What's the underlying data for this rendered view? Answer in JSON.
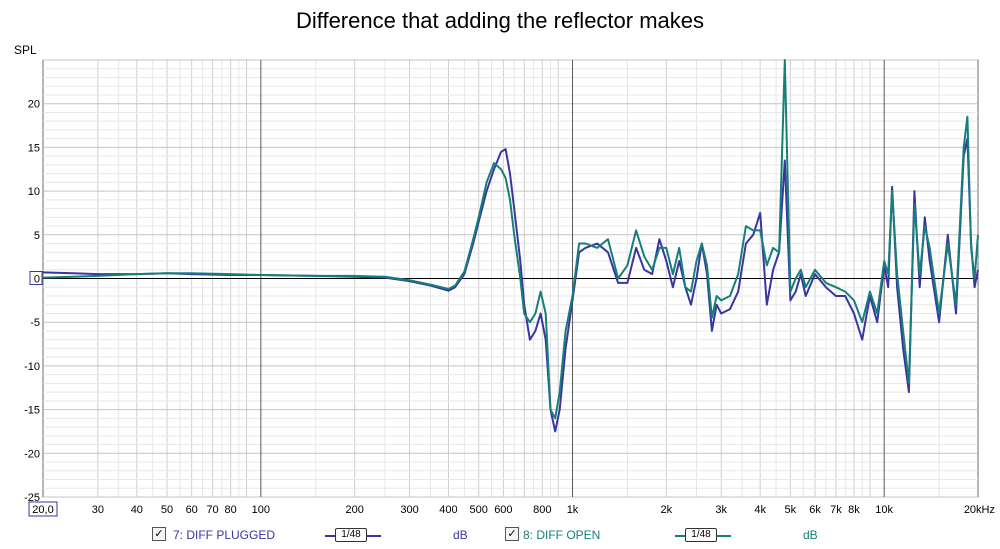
{
  "title": "Difference that adding the reflector makes",
  "legend": [
    {
      "checked": true,
      "label": "7: DIFF PLUGGED",
      "smoothing": "1/48",
      "unit": "dB",
      "color": "#3a36a0"
    },
    {
      "checked": true,
      "label": "8: DIFF OPEN",
      "smoothing": "1/48",
      "unit": "dB",
      "color": "#167f7a"
    }
  ],
  "chart_data": {
    "type": "line",
    "title": "Difference that adding the reflector makes",
    "ylabel": "SPL",
    "xlabel": "",
    "xscale": "log",
    "xlim": [
      20,
      20000
    ],
    "ylim": [
      -25,
      25
    ],
    "x_ticks": [
      {
        "v": 20,
        "label": "20,0"
      },
      {
        "v": 30,
        "label": "30"
      },
      {
        "v": 40,
        "label": "40"
      },
      {
        "v": 50,
        "label": "50"
      },
      {
        "v": 60,
        "label": "60"
      },
      {
        "v": 70,
        "label": "70"
      },
      {
        "v": 80,
        "label": "80"
      },
      {
        "v": 100,
        "label": "100"
      },
      {
        "v": 200,
        "label": "200"
      },
      {
        "v": 300,
        "label": "300"
      },
      {
        "v": 400,
        "label": "400"
      },
      {
        "v": 500,
        "label": "500"
      },
      {
        "v": 600,
        "label": "600"
      },
      {
        "v": 800,
        "label": "800"
      },
      {
        "v": 1000,
        "label": "1k"
      },
      {
        "v": 2000,
        "label": "2k"
      },
      {
        "v": 3000,
        "label": "3k"
      },
      {
        "v": 4000,
        "label": "4k"
      },
      {
        "v": 5000,
        "label": "5k"
      },
      {
        "v": 6000,
        "label": "6k"
      },
      {
        "v": 7000,
        "label": "7k"
      },
      {
        "v": 8000,
        "label": "8k"
      },
      {
        "v": 10000,
        "label": "10k"
      },
      {
        "v": 20000,
        "label": "20kHz"
      }
    ],
    "y_ticks": [
      {
        "v": 25,
        "label": ""
      },
      {
        "v": 20,
        "label": "20"
      },
      {
        "v": 15,
        "label": "15"
      },
      {
        "v": 10,
        "label": "10"
      },
      {
        "v": 5,
        "label": "5"
      },
      {
        "v": 0,
        "label": "0"
      },
      {
        "v": -5,
        "label": "-5"
      },
      {
        "v": -10,
        "label": "-10"
      },
      {
        "v": -15,
        "label": "-15"
      },
      {
        "v": -20,
        "label": "-20"
      },
      {
        "v": -25,
        "label": "-25"
      }
    ],
    "grid": true,
    "series": [
      {
        "name": "7: DIFF PLUGGED",
        "color": "#3a36a0",
        "x": [
          20,
          25,
          30,
          40,
          50,
          60,
          80,
          100,
          150,
          200,
          250,
          300,
          350,
          400,
          420,
          450,
          480,
          500,
          530,
          560,
          590,
          610,
          630,
          650,
          680,
          700,
          730,
          760,
          790,
          820,
          850,
          880,
          910,
          950,
          1000,
          1050,
          1100,
          1200,
          1300,
          1400,
          1500,
          1600,
          1700,
          1800,
          1900,
          2000,
          2100,
          2200,
          2300,
          2400,
          2500,
          2600,
          2700,
          2800,
          2900,
          3000,
          3200,
          3400,
          3600,
          3800,
          4000,
          4200,
          4400,
          4600,
          4800,
          5000,
          5200,
          5400,
          5600,
          6000,
          6500,
          7000,
          7500,
          8000,
          8500,
          9000,
          9500,
          10000,
          10300,
          10600,
          11000,
          11500,
          12000,
          12500,
          13000,
          13500,
          14000,
          15000,
          16000,
          17000,
          18000,
          18500,
          19000,
          19500,
          20000
        ],
        "y": [
          0.7,
          0.6,
          0.5,
          0.5,
          0.6,
          0.5,
          0.4,
          0.4,
          0.3,
          0.2,
          0.1,
          -0.3,
          -0.8,
          -1.4,
          -1.0,
          0.5,
          4.0,
          6.5,
          10.0,
          12.5,
          14.5,
          14.8,
          12.0,
          8.0,
          2.0,
          -3.0,
          -7.0,
          -6.0,
          -4.0,
          -7.0,
          -15.0,
          -17.5,
          -15.0,
          -8.0,
          -2.5,
          3.0,
          3.5,
          4.0,
          3.0,
          -0.5,
          -0.5,
          3.5,
          1.0,
          0.5,
          4.5,
          2.0,
          -1.0,
          2.0,
          -1.0,
          -3.0,
          0.0,
          4.0,
          0.5,
          -6.0,
          -3.0,
          -4.0,
          -3.5,
          -1.5,
          4.0,
          5.0,
          7.5,
          -3.0,
          1.0,
          3.0,
          13.5,
          -2.5,
          -1.5,
          0.5,
          -2.0,
          0.5,
          -1.0,
          -2.0,
          -2.0,
          -4.0,
          -7.0,
          -2.0,
          -5.0,
          1.5,
          -1.0,
          10.5,
          -1.0,
          -8.0,
          -13.0,
          10.0,
          -1.0,
          7.0,
          2.0,
          -5.0,
          5.0,
          -4.0,
          14.0,
          16.0,
          4.0,
          -1.0,
          1.0
        ]
      },
      {
        "name": "8: DIFF OPEN",
        "color": "#167f7a",
        "x": [
          20,
          25,
          30,
          40,
          50,
          60,
          80,
          100,
          150,
          200,
          250,
          300,
          350,
          400,
          420,
          450,
          480,
          500,
          530,
          560,
          590,
          610,
          630,
          650,
          680,
          700,
          730,
          760,
          790,
          820,
          850,
          880,
          910,
          950,
          1000,
          1050,
          1100,
          1200,
          1300,
          1400,
          1500,
          1600,
          1700,
          1800,
          1900,
          2000,
          2100,
          2200,
          2300,
          2400,
          2500,
          2600,
          2700,
          2800,
          2900,
          3000,
          3200,
          3400,
          3600,
          3800,
          4000,
          4200,
          4400,
          4600,
          4800,
          5000,
          5200,
          5400,
          5600,
          6000,
          6500,
          7000,
          7500,
          8000,
          8500,
          9000,
          9500,
          10000,
          10300,
          10600,
          11000,
          11500,
          12000,
          12500,
          13000,
          13500,
          14000,
          15000,
          16000,
          17000,
          18000,
          18500,
          19000,
          19500,
          20000
        ],
        "y": [
          0.1,
          0.2,
          0.3,
          0.5,
          0.6,
          0.6,
          0.5,
          0.4,
          0.3,
          0.3,
          0.2,
          -0.2,
          -0.7,
          -1.2,
          -0.8,
          0.8,
          4.5,
          7.0,
          11.0,
          13.2,
          12.5,
          11.5,
          9.0,
          5.0,
          0.0,
          -4.0,
          -5.0,
          -4.0,
          -1.5,
          -4.0,
          -15.0,
          -16.0,
          -13.0,
          -6.0,
          -2.0,
          4.0,
          4.0,
          3.5,
          4.5,
          0.0,
          1.5,
          5.5,
          2.5,
          1.0,
          3.5,
          3.5,
          0.5,
          3.5,
          -1.0,
          -1.5,
          2.0,
          4.0,
          1.5,
          -4.5,
          -2.0,
          -2.5,
          -2.0,
          0.5,
          6.0,
          5.5,
          5.5,
          1.5,
          3.5,
          3.0,
          25.0,
          -1.5,
          0.0,
          1.0,
          -1.0,
          1.0,
          -0.5,
          -1.0,
          -1.5,
          -2.5,
          -5.0,
          -1.5,
          -4.0,
          2.0,
          0.5,
          10.0,
          0.5,
          -6.0,
          -12.0,
          8.5,
          0.5,
          6.0,
          3.5,
          -4.0,
          4.0,
          -3.0,
          15.0,
          18.5,
          3.5,
          0.0,
          5.0
        ]
      }
    ]
  }
}
